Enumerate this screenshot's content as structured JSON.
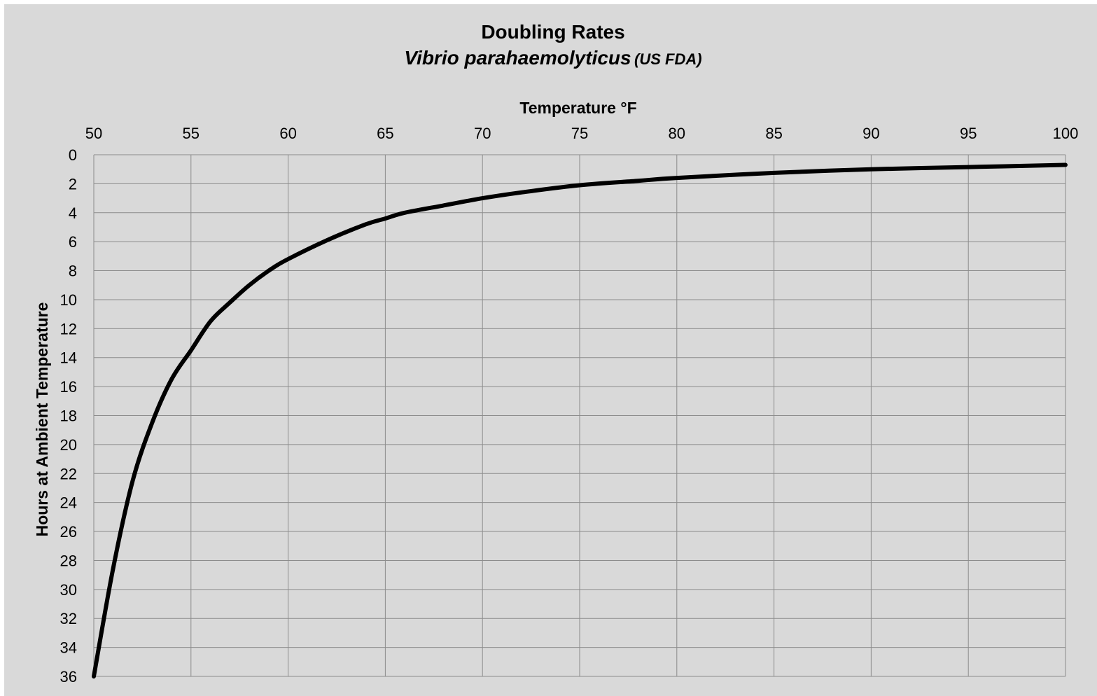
{
  "chart_data": {
    "type": "line",
    "title": "Doubling Rates",
    "subtitle_main": "Vibrio parahaemolyticus",
    "subtitle_source": "(US FDA)",
    "xlabel": "Temperature °F",
    "ylabel": "Hours at Ambient Temperature",
    "xlim": [
      50,
      100
    ],
    "ylim": [
      0,
      36
    ],
    "y_inverted": true,
    "x_axis_position": "top",
    "grid": true,
    "background_color": "#d9d9d9",
    "grid_color": "#8c8c8c",
    "line_color": "#000000",
    "x_ticks": [
      "50",
      "55",
      "60",
      "65",
      "70",
      "75",
      "80",
      "85",
      "90",
      "95",
      "100"
    ],
    "y_ticks": [
      "0",
      "2",
      "4",
      "6",
      "8",
      "10",
      "12",
      "14",
      "16",
      "18",
      "20",
      "22",
      "24",
      "26",
      "28",
      "30",
      "32",
      "34",
      "36"
    ],
    "series": [
      {
        "x": [
          50,
          51,
          52,
          53,
          54,
          55,
          56,
          57,
          58,
          59,
          60,
          62,
          64,
          65,
          66,
          68,
          70,
          72,
          75,
          78,
          80,
          85,
          90,
          95,
          100
        ],
        "y": [
          36,
          28.5,
          22.5,
          18.5,
          15.5,
          13.5,
          11.5,
          10.2,
          9.0,
          8.0,
          7.2,
          5.9,
          4.8,
          4.4,
          4.0,
          3.5,
          3.0,
          2.6,
          2.1,
          1.8,
          1.6,
          1.25,
          1.0,
          0.85,
          0.7
        ]
      }
    ]
  }
}
